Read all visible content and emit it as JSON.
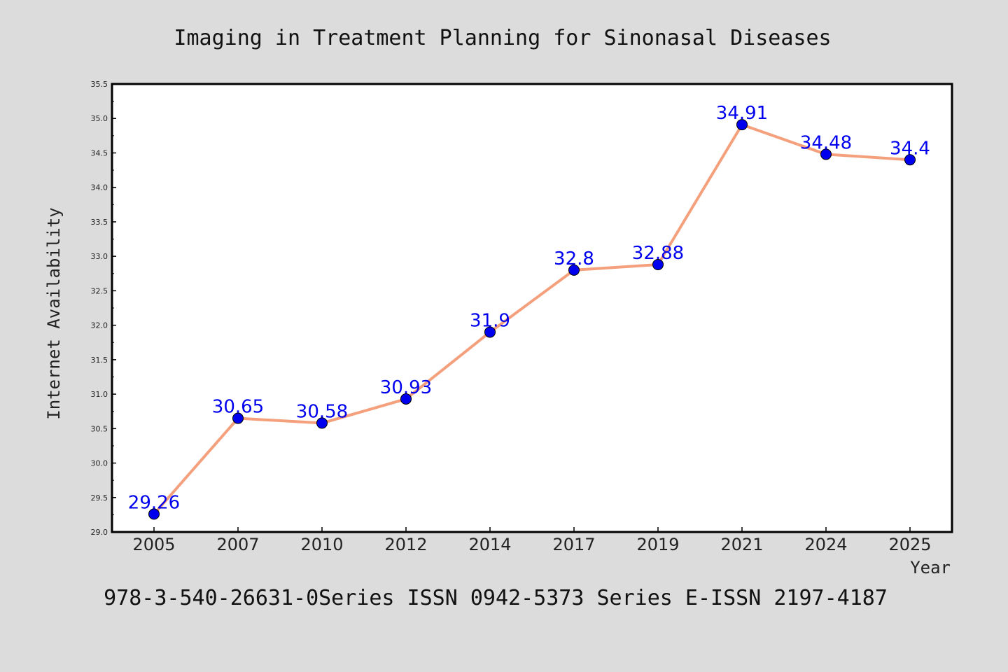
{
  "chart_data": {
    "type": "line",
    "title": "Imaging in Treatment Planning for Sinonasal Diseases",
    "xlabel": "Year",
    "ylabel": "Internet Availability",
    "categories": [
      "2005",
      "2007",
      "2010",
      "2012",
      "2014",
      "2017",
      "2019",
      "2021",
      "2024",
      "2025"
    ],
    "series": [
      {
        "values": [
          29.26,
          30.65,
          30.58,
          30.93,
          31.9,
          32.8,
          32.88,
          34.91,
          34.48,
          34.4
        ],
        "labels": [
          "29.26",
          "30.65",
          "30.58",
          "30.93",
          "31.9",
          "32.8",
          "32.88",
          "34.91",
          "34.48",
          "34.4"
        ]
      }
    ],
    "ylim": [
      29.0,
      35.5
    ],
    "yticks": [
      "29.0",
      "29.5",
      "30.0",
      "30.5",
      "31.0",
      "31.5",
      "32.0",
      "32.5",
      "33.0",
      "33.5",
      "34.0",
      "34.5",
      "35.0",
      "35.5"
    ],
    "grid": false,
    "line_color": "#f4a07c",
    "marker_color": "#0000ee",
    "background": "#ffffff"
  },
  "footer": "978-3-540-26631-0Series ISSN 0942-5373 Series E-ISSN 2197-4187"
}
